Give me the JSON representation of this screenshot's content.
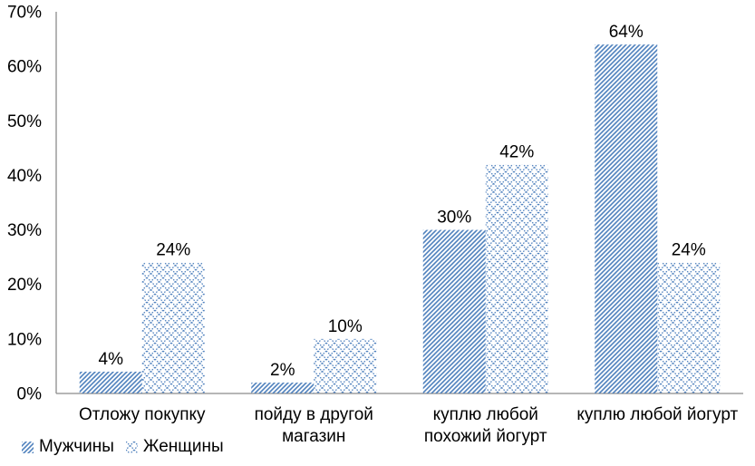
{
  "chart_data": {
    "type": "bar",
    "title": "",
    "categories": [
      "Отложу покупку",
      "пойду в другой магазин",
      "куплю любой похожий йогурт",
      "куплю любой йогурт"
    ],
    "category_lines": [
      [
        "Отложу покупку"
      ],
      [
        "пойду в другой",
        "магазин"
      ],
      [
        "куплю любой",
        "похожий йогурт"
      ],
      [
        "куплю любой йогурт"
      ]
    ],
    "series": [
      {
        "name": "Мужчины",
        "pattern": "diagonal-hatch",
        "values": [
          4,
          2,
          30,
          64
        ]
      },
      {
        "name": "Женщины",
        "pattern": "diamond-lattice",
        "values": [
          24,
          10,
          42,
          24
        ]
      }
    ],
    "value_suffix": "%",
    "y_axis": {
      "min": 0,
      "max": 70,
      "step": 10,
      "tick_labels": [
        "0%",
        "10%",
        "20%",
        "30%",
        "40%",
        "50%",
        "60%",
        "70%"
      ]
    },
    "grid": false,
    "legend_position": "bottom-left",
    "colors": {
      "bar_pattern": "#4f81bd",
      "axis": "#8c8c8c",
      "text": "#000000",
      "background": "#ffffff"
    }
  }
}
